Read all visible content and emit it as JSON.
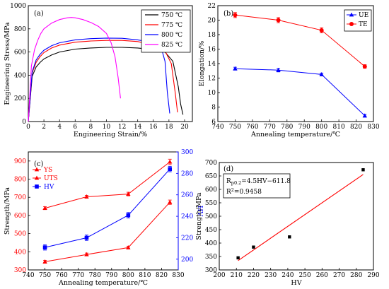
{
  "chart_data": [
    {
      "id": "a",
      "panel_label": "(a)",
      "type": "line",
      "xlabel": "Engineering Strain/%",
      "ylabel": "Engineering Stress/MPa",
      "xlim": [
        0,
        21
      ],
      "ylim": [
        0,
        1000
      ],
      "xticks": [
        0,
        2,
        4,
        6,
        8,
        10,
        12,
        14,
        16,
        18,
        20
      ],
      "yticks": [
        0,
        200,
        400,
        600,
        800,
        1000
      ],
      "legend": "top-right",
      "series": [
        {
          "name": "750 ℃",
          "color": "#000000",
          "x": [
            0,
            0.5,
            1,
            1.5,
            2,
            3,
            4,
            6,
            8,
            10,
            12,
            14,
            16,
            17.5,
            18.5,
            19.2,
            19.5,
            19.8
          ],
          "y": [
            0,
            390,
            470,
            510,
            540,
            575,
            600,
            625,
            635,
            640,
            640,
            635,
            620,
            600,
            520,
            300,
            150,
            60
          ]
        },
        {
          "name": "775 ℃",
          "color": "#ff0000",
          "x": [
            0,
            0.5,
            1,
            1.5,
            2,
            3,
            4,
            6,
            8,
            10,
            12,
            14,
            16,
            17.5,
            18.3,
            18.8,
            19.1
          ],
          "y": [
            0,
            420,
            510,
            560,
            595,
            635,
            660,
            685,
            695,
            700,
            700,
            690,
            660,
            610,
            500,
            250,
            80
          ]
        },
        {
          "name": "800 ℃",
          "color": "#0000ff",
          "x": [
            0,
            0.5,
            1,
            1.5,
            2,
            3,
            4,
            6,
            8,
            10,
            12,
            14,
            16,
            17,
            17.5,
            17.8,
            18.1
          ],
          "y": [
            0,
            430,
            530,
            580,
            615,
            655,
            680,
            705,
            715,
            720,
            718,
            705,
            680,
            640,
            520,
            250,
            70
          ]
        },
        {
          "name": "825 ℃",
          "color": "#ff00ff",
          "x": [
            0,
            0.4,
            0.8,
            1.2,
            1.6,
            2,
            3,
            4,
            5,
            5.5,
            6,
            7,
            8,
            9,
            10,
            10.6,
            11.1,
            11.5,
            11.8
          ],
          "y": [
            0,
            480,
            620,
            700,
            760,
            800,
            850,
            880,
            895,
            898,
            895,
            880,
            855,
            820,
            760,
            680,
            560,
            380,
            200
          ]
        }
      ]
    },
    {
      "id": "b",
      "panel_label": "(b)",
      "type": "line",
      "xlabel": "Annealing temperature/℃",
      "ylabel": "Elongation/%",
      "xlim": [
        740,
        830
      ],
      "ylim": [
        6,
        22
      ],
      "xticks": [
        740,
        750,
        760,
        770,
        780,
        790,
        800,
        810,
        820,
        830
      ],
      "yticks": [
        6,
        8,
        10,
        12,
        14,
        16,
        18,
        20,
        22
      ],
      "legend": "top-right",
      "x": [
        750,
        775,
        800,
        825
      ],
      "series": [
        {
          "name": "UE",
          "color": "#0000ff",
          "marker": "triangle",
          "values": [
            13.3,
            13.1,
            12.5,
            6.8
          ],
          "errors": [
            0.2,
            0.25,
            0.2,
            0.2
          ]
        },
        {
          "name": "TE",
          "color": "#ff0000",
          "marker": "circle",
          "values": [
            20.7,
            20.0,
            18.6,
            13.6
          ],
          "errors": [
            0.35,
            0.35,
            0.35,
            0.25
          ]
        }
      ]
    },
    {
      "id": "c",
      "panel_label": "(c)",
      "type": "line",
      "xlabel": "Annealing temperature/℃",
      "ylabel": "Strength/MPa",
      "y2label": "HV",
      "xlim": [
        740,
        830
      ],
      "ylim": [
        300,
        950
      ],
      "y2lim": [
        190,
        300
      ],
      "xticks": [
        740,
        750,
        760,
        770,
        780,
        790,
        800,
        810,
        820,
        830
      ],
      "yticks": [
        300,
        400,
        500,
        600,
        700,
        800,
        900
      ],
      "y2ticks": [
        200,
        220,
        240,
        260,
        280,
        300
      ],
      "legend": "top-left",
      "x": [
        750,
        775,
        800,
        825
      ],
      "series": [
        {
          "name": "YS",
          "color": "#ff0000",
          "marker": "triangle",
          "axis": "left",
          "values": [
            345,
            385,
            423,
            673
          ],
          "errors": [
            8,
            8,
            8,
            12
          ]
        },
        {
          "name": "UTS",
          "color": "#ff0000",
          "marker": "triangle",
          "axis": "left",
          "values": [
            640,
            703,
            718,
            895
          ],
          "errors": [
            8,
            8,
            10,
            15
          ]
        },
        {
          "name": "HV",
          "color": "#0000ff",
          "marker": "square",
          "axis": "right",
          "values": [
            211,
            220,
            241,
            284
          ],
          "errors": [
            2.5,
            2.5,
            2.5,
            2.5
          ]
        }
      ]
    },
    {
      "id": "d",
      "panel_label": "(d)",
      "type": "scatter",
      "xlabel": "HV",
      "ylabel": "Strength/MPa",
      "xlim": [
        200,
        290
      ],
      "ylim": [
        300,
        700
      ],
      "xticks": [
        200,
        210,
        220,
        230,
        240,
        250,
        260,
        270,
        280,
        290
      ],
      "yticks": [
        300,
        350,
        400,
        450,
        500,
        550,
        600,
        650,
        700
      ],
      "points": {
        "x": [
          211,
          220,
          241,
          284
        ],
        "y": [
          345,
          385,
          423,
          673
        ],
        "color": "#000000"
      },
      "fit_line": {
        "x": [
          211,
          284
        ],
        "y": [
          334.8,
          655.4
        ],
        "color": "#ff0000"
      },
      "annotation": {
        "line1_main": "R",
        "line1_sub": "p0.2",
        "line1_rest": "=4.5HV−611.8",
        "line2_main": "R",
        "line2_sup": "2",
        "line2_rest": "=0.9458"
      }
    }
  ]
}
